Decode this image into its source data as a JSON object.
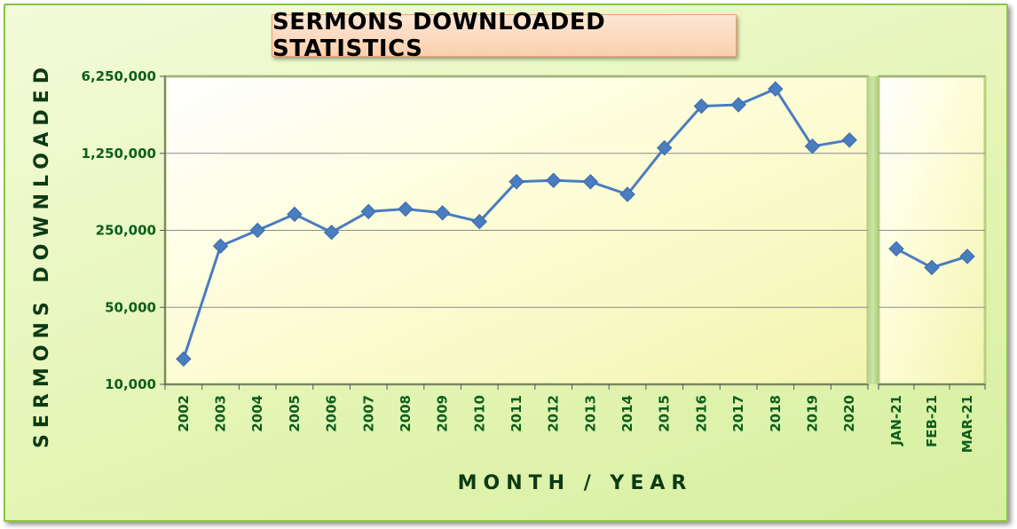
{
  "chart_data": {
    "type": "line",
    "title": "SERMONS DOWNLOADED STATISTICS",
    "xlabel": "MONTH / YEAR",
    "ylabel": "SERMONS DOWNLOADED",
    "yscale": "log",
    "ylim": [
      10000,
      6250000
    ],
    "yticks": [
      "10,000",
      "50,000",
      "250,000",
      "1,250,000",
      "6,250,000"
    ],
    "ytick_values": [
      10000,
      50000,
      250000,
      1250000,
      6250000
    ],
    "grid": true,
    "legend": "none",
    "panels": [
      {
        "categories": [
          "2002",
          "2003",
          "2004",
          "2005",
          "2006",
          "2007",
          "2008",
          "2009",
          "2010",
          "2011",
          "2012",
          "2013",
          "2014",
          "2015",
          "2016",
          "2017",
          "2018",
          "2019",
          "2020"
        ],
        "values": [
          17000,
          180000,
          250000,
          350000,
          240000,
          370000,
          390000,
          360000,
          300000,
          690000,
          710000,
          690000,
          530000,
          1400000,
          3350000,
          3450000,
          4800000,
          1450000,
          1650000
        ]
      },
      {
        "categories": [
          "JAN-21",
          "FEB-21",
          "MAR-21"
        ],
        "values": [
          170000,
          115000,
          145000
        ]
      }
    ],
    "colors": {
      "line": "#4a7cc0",
      "marker": "#4a7cc0",
      "plot_area": "#fbfbc8",
      "gridline": "#8c8c8c",
      "tick_text": "#0d5e1c"
    }
  }
}
